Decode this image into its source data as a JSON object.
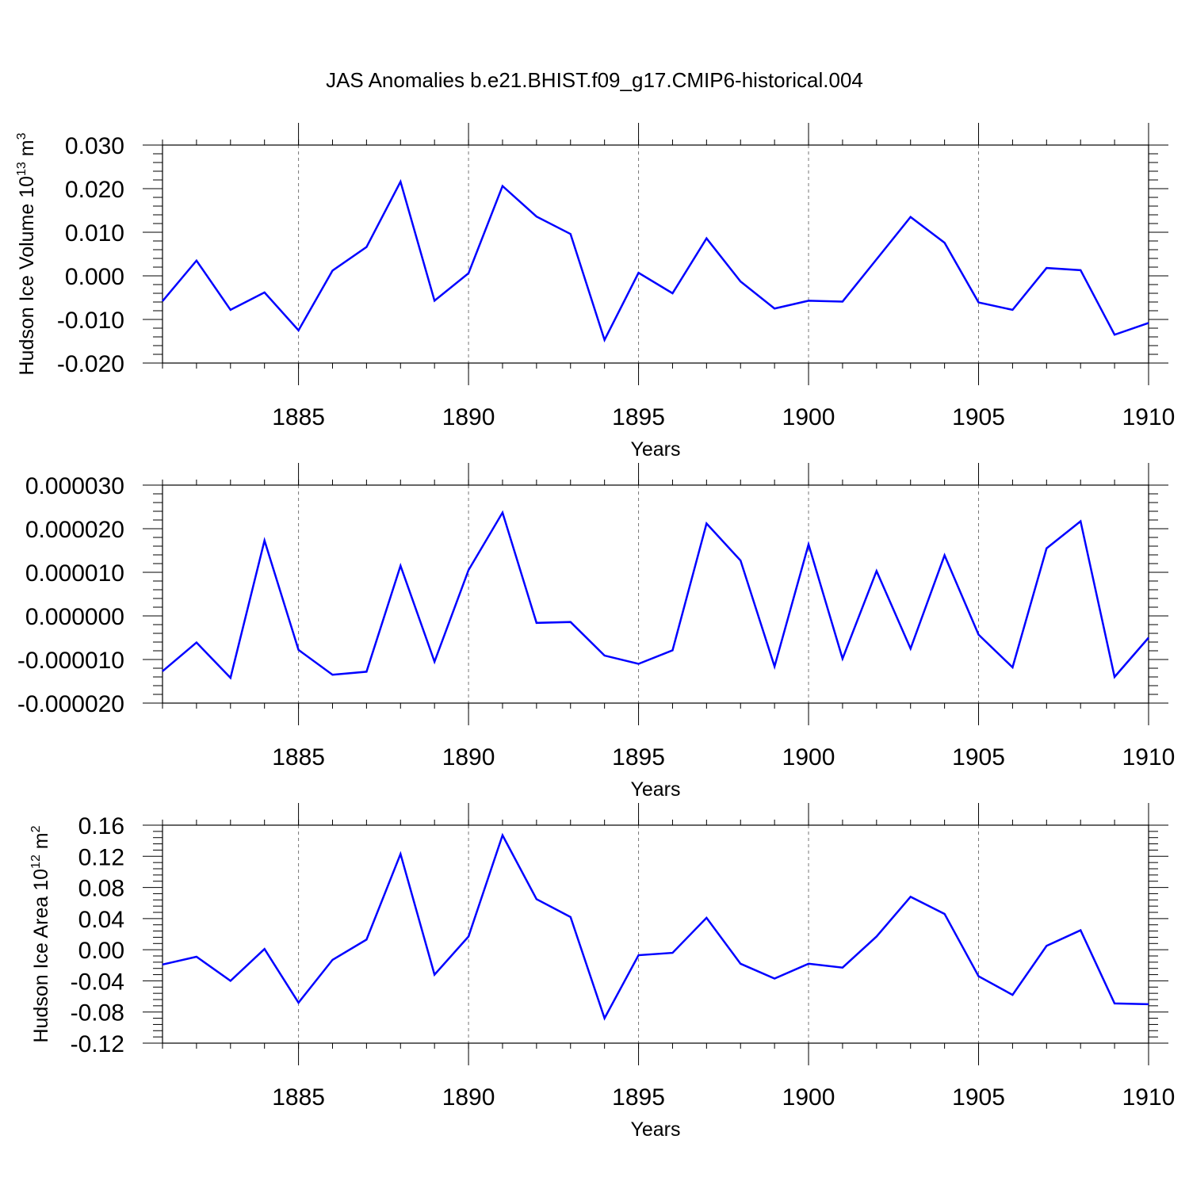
{
  "title": "JAS Anomalies b.e21.BHIST.f09_g17.CMIP6-historical.004",
  "line_color": "#0000ff",
  "chart_data": [
    {
      "type": "line",
      "xlabel": "Years",
      "ylabel": {
        "main": "Hudson Ice Volume 10",
        "sup": "13",
        "unit": " m",
        "unit_sup": "3"
      },
      "xlim": [
        1881,
        1910
      ],
      "ylim": [
        -0.02,
        0.03
      ],
      "xticks": [
        1885,
        1890,
        1895,
        1900,
        1905,
        1910
      ],
      "yticks": [
        -0.02,
        -0.01,
        0.0,
        0.01,
        0.02,
        0.03
      ],
      "ytick_labels": [
        "-0.020",
        "-0.010",
        "0.000",
        "0.010",
        "0.020",
        "0.030"
      ],
      "x": [
        1881,
        1882,
        1883,
        1884,
        1885,
        1886,
        1887,
        1888,
        1889,
        1890,
        1891,
        1892,
        1893,
        1894,
        1895,
        1896,
        1897,
        1898,
        1899,
        1900,
        1901,
        1902,
        1903,
        1904,
        1905,
        1906,
        1907,
        1908,
        1909,
        1910
      ],
      "series": [
        {
          "values": [
            -0.0058,
            0.0035,
            -0.0078,
            -0.0038,
            -0.0125,
            0.0012,
            0.0066,
            0.0216,
            -0.0057,
            0.0006,
            0.0206,
            0.0136,
            0.0096,
            -0.0147,
            0.0007,
            -0.004,
            0.0086,
            -0.0013,
            -0.0075,
            -0.0057,
            -0.0059,
            0.0038,
            0.0135,
            0.0076,
            -0.0061,
            -0.0078,
            0.0018,
            0.0013,
            -0.0135,
            -0.0108
          ]
        }
      ]
    },
    {
      "type": "line",
      "xlabel": "Years",
      "ylabel": null,
      "xlim": [
        1881,
        1910
      ],
      "ylim": [
        -2e-05,
        3e-05
      ],
      "xticks": [
        1885,
        1890,
        1895,
        1900,
        1905,
        1910
      ],
      "yticks": [
        -2e-05,
        -1e-05,
        0.0,
        1e-05,
        2e-05,
        3e-05
      ],
      "ytick_labels": [
        "-0.000020",
        "-0.000010",
        "0.000000",
        "0.000010",
        "0.000020",
        "0.000030"
      ],
      "x": [
        1881,
        1882,
        1883,
        1884,
        1885,
        1886,
        1887,
        1888,
        1889,
        1890,
        1891,
        1892,
        1893,
        1894,
        1895,
        1896,
        1897,
        1898,
        1899,
        1900,
        1901,
        1902,
        1903,
        1904,
        1905,
        1906,
        1907,
        1908,
        1909,
        1910
      ],
      "series": [
        {
          "values": [
            -1.27e-05,
            -6.1e-06,
            -1.42e-05,
            1.73e-05,
            -7.8e-06,
            -1.35e-05,
            -1.28e-05,
            1.15e-05,
            -1.05e-05,
            1.05e-05,
            2.37e-05,
            -1.6e-06,
            -1.4e-06,
            -9.1e-06,
            -1.1e-05,
            -7.9e-06,
            2.12e-05,
            1.27e-05,
            -1.16e-05,
            1.64e-05,
            -9.8e-06,
            1.03e-05,
            -7.5e-06,
            1.39e-05,
            -4.3e-06,
            -1.18e-05,
            1.55e-05,
            2.17e-05,
            -1.4e-05,
            -5e-06
          ]
        }
      ]
    },
    {
      "type": "line",
      "xlabel": "Years",
      "ylabel": {
        "main": "Hudson Ice Area 10",
        "sup": "12",
        "unit": " m",
        "unit_sup": "2"
      },
      "xlim": [
        1881,
        1910
      ],
      "ylim": [
        -0.12,
        0.16
      ],
      "xticks": [
        1885,
        1890,
        1895,
        1900,
        1905,
        1910
      ],
      "yticks": [
        -0.12,
        -0.08,
        -0.04,
        0.0,
        0.04,
        0.08,
        0.12,
        0.16
      ],
      "ytick_labels": [
        "-0.12",
        "-0.08",
        "-0.04",
        "0.00",
        "0.04",
        "0.08",
        "0.12",
        "0.16"
      ],
      "x": [
        1881,
        1882,
        1883,
        1884,
        1885,
        1886,
        1887,
        1888,
        1889,
        1890,
        1891,
        1892,
        1893,
        1894,
        1895,
        1896,
        1897,
        1898,
        1899,
        1900,
        1901,
        1902,
        1903,
        1904,
        1905,
        1906,
        1907,
        1908,
        1909,
        1910
      ],
      "series": [
        {
          "values": [
            -0.019,
            -0.009,
            -0.04,
            0.001,
            -0.068,
            -0.013,
            0.013,
            0.123,
            -0.032,
            0.017,
            0.147,
            0.065,
            0.042,
            -0.088,
            -0.007,
            -0.004,
            0.041,
            -0.018,
            -0.037,
            -0.018,
            -0.023,
            0.017,
            0.068,
            0.046,
            -0.034,
            -0.058,
            0.005,
            0.025,
            -0.069,
            -0.07
          ]
        }
      ]
    }
  ]
}
